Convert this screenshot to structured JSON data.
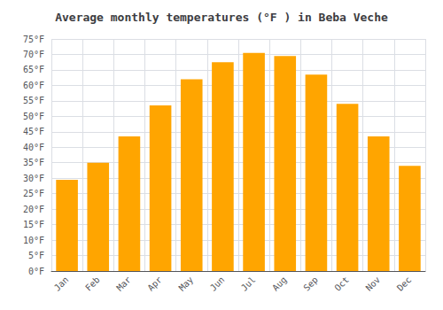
{
  "chart_data": {
    "type": "bar",
    "title": "Average monthly temperatures (°F ) in Beba Veche",
    "categories": [
      "Jan",
      "Feb",
      "Mar",
      "Apr",
      "May",
      "Jun",
      "Jul",
      "Aug",
      "Sep",
      "Oct",
      "Nov",
      "Dec"
    ],
    "values": [
      29.5,
      35.0,
      43.5,
      53.5,
      62.0,
      67.5,
      70.5,
      69.5,
      63.5,
      54.0,
      43.5,
      34.0
    ],
    "color": "#FFA500",
    "ylim": [
      0,
      75
    ],
    "yticks": [
      {
        "value": 0,
        "label": "0°F"
      },
      {
        "value": 5,
        "label": "5°F"
      },
      {
        "value": 10,
        "label": "10°F"
      },
      {
        "value": 15,
        "label": "15°F"
      },
      {
        "value": 20,
        "label": "20°F"
      },
      {
        "value": 25,
        "label": "25°F"
      },
      {
        "value": 30,
        "label": "30°F"
      },
      {
        "value": 35,
        "label": "35°F"
      },
      {
        "value": 40,
        "label": "40°F"
      },
      {
        "value": 45,
        "label": "45°F"
      },
      {
        "value": 50,
        "label": "50°F"
      },
      {
        "value": 55,
        "label": "55°F"
      },
      {
        "value": 60,
        "label": "60°F"
      },
      {
        "value": 65,
        "label": "65°F"
      },
      {
        "value": 70,
        "label": "70°F"
      },
      {
        "value": 75,
        "label": "75°F"
      }
    ],
    "grid": true
  }
}
